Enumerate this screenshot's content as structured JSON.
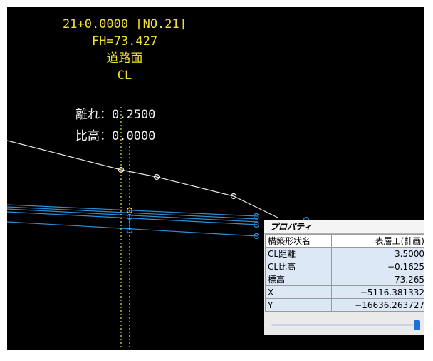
{
  "header": {
    "station": "21+0.0000 [NO.21]",
    "fh": "FH=73.427",
    "surface": "道路面",
    "cl": "CL",
    "hanare": "離れ：0.2500",
    "hidaka": "比高：0.0000"
  },
  "properties": {
    "title": "プロパティ",
    "rows": [
      {
        "key": "構築形状名",
        "value": "表層工(計画)"
      },
      {
        "key": "CL距離",
        "value": "3.5000"
      },
      {
        "key": "CL比高",
        "value": "−0.1625"
      },
      {
        "key": "標高",
        "value": "73.265"
      },
      {
        "key": "X",
        "value": "−5116.381332"
      },
      {
        "key": "Y",
        "value": "−16636.263727"
      }
    ],
    "slider_level": 1.0
  },
  "colors": {
    "background": "#000000",
    "yellow_text": "#f0e030",
    "ground_line": "#e6e6e6",
    "pavement_lines": "#2b8fd6",
    "accent": "#1f6fd8"
  }
}
